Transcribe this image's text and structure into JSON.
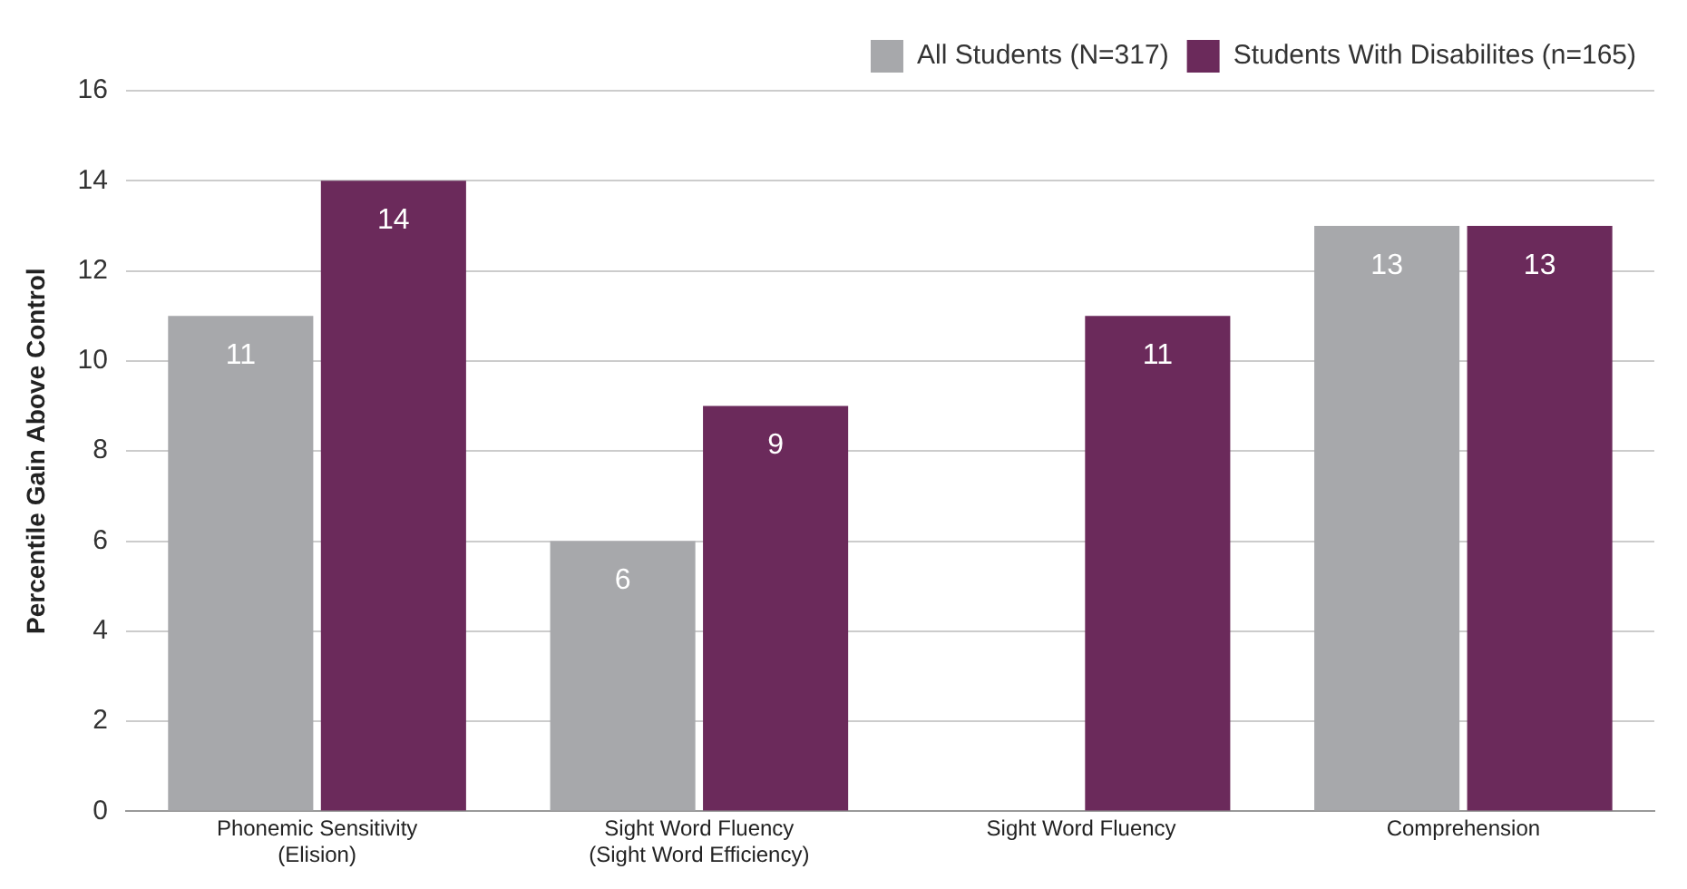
{
  "chart_data": {
    "type": "bar",
    "ylabel": "Percentile Gain Above Control",
    "categories": [
      "Phonemic Sensitivity (Elision)",
      "Sight Word Fluency (Sight Word Efficiency)",
      "Sight Word Fluency",
      "Comprehension"
    ],
    "series": [
      {
        "name": "All Students (N=317)",
        "color": "#a7a8ab",
        "values": [
          11,
          6,
          null,
          13
        ]
      },
      {
        "name": "Students With Disabilites (n=165)",
        "color": "#6b2a5b",
        "values": [
          14,
          9,
          11,
          13
        ]
      }
    ],
    "ylim": [
      0,
      16
    ],
    "yticks": [
      0,
      2,
      4,
      6,
      8,
      10,
      12,
      14,
      16
    ],
    "grid": "y",
    "legend": "top right",
    "data_labels": true
  }
}
